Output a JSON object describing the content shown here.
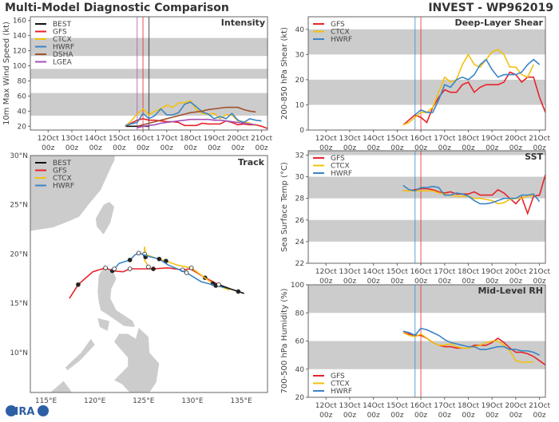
{
  "header": {
    "left_title": "Multi-Model Diagnostic Comparison",
    "right_title": "INVEST - WP962019"
  },
  "logo": {
    "text": "CIRA"
  },
  "colors": {
    "BEST": "#111111",
    "GFS": "#e8222a",
    "CTCX": "#f2c010",
    "HWRF": "#3a85c6",
    "DSHA": "#a0522d",
    "LGEA": "#a64fb5",
    "band": "#cccccc",
    "land": "#cccccc"
  },
  "time_axis": {
    "xlim": [
      "2019-10-11T06Z",
      "2019-10-21T06Z"
    ],
    "ticks": [
      "2019-10-12T00Z",
      "2019-10-13T00Z",
      "2019-10-14T00Z",
      "2019-10-15T00Z",
      "2019-10-16T00Z",
      "2019-10-17T00Z",
      "2019-10-18T00Z",
      "2019-10-19T00Z",
      "2019-10-20T00Z",
      "2019-10-21T00Z"
    ],
    "tick_labels": [
      "12Oct",
      "13Oct",
      "14Oct",
      "15Oct",
      "16Oct",
      "17Oct",
      "18Oct",
      "19Oct",
      "20Oct",
      "21Oct"
    ],
    "tick_sub": "00z"
  },
  "chart_data": [
    {
      "id": "intensity",
      "type": "line",
      "title": "Intensity",
      "ylabel": "10m Max Wind Speed (kt)",
      "ylim": [
        15,
        165
      ],
      "yticks": [
        20,
        40,
        60,
        80,
        100,
        120,
        140,
        160
      ],
      "bands": [
        [
          34,
          64
        ],
        [
          83,
          96
        ],
        [
          113,
          137
        ]
      ],
      "vlines": [
        {
          "model": "LGEA",
          "time": "2019-10-15T18Z"
        },
        {
          "model": "GFS",
          "time": "2019-10-16T00Z"
        },
        {
          "model": "BEST",
          "time": "2019-10-16T06Z"
        }
      ],
      "legend": [
        "BEST",
        "GFS",
        "CTCX",
        "HWRF",
        "DSHA",
        "LGEA"
      ],
      "legend_placement": "top-left",
      "step_hours": 6,
      "series": [
        {
          "name": "BEST",
          "start": "2019-10-15T06Z",
          "values": [
            20,
            20,
            20,
            20,
            20
          ]
        },
        {
          "name": "GFS",
          "start": "2019-10-15T06Z",
          "values": [
            20,
            24,
            28,
            30,
            28,
            28,
            27,
            26,
            26,
            25,
            21,
            21,
            21,
            24,
            23,
            23,
            23,
            27,
            25,
            22,
            23,
            22,
            22,
            20,
            17
          ]
        },
        {
          "name": "CTCX",
          "start": "2019-10-15T06Z",
          "values": [
            20,
            27,
            36,
            43,
            35,
            40,
            43,
            48,
            45,
            51,
            51,
            54,
            42,
            37,
            36,
            37,
            30,
            35,
            35,
            27,
            26,
            24,
            21
          ]
        },
        {
          "name": "HWRF",
          "start": "2019-10-15T06Z",
          "values": [
            21,
            23,
            25,
            37,
            30,
            34,
            43,
            35,
            35,
            38,
            49,
            52,
            46,
            39,
            36,
            30,
            33,
            30,
            37,
            28,
            25,
            30,
            28,
            27
          ]
        },
        {
          "name": "DSHA",
          "start": "2019-10-15T18Z",
          "values": [
            20,
            22,
            24,
            26,
            28,
            30,
            32,
            34,
            36,
            38,
            39,
            40,
            42,
            43,
            44,
            45,
            45,
            45,
            42,
            40,
            39
          ]
        },
        {
          "name": "LGEA",
          "start": "2019-10-15T18Z",
          "values": [
            18,
            20,
            21,
            22,
            24,
            25,
            26,
            27,
            28,
            29,
            29,
            29,
            29,
            28,
            28,
            27,
            26,
            25,
            24,
            23,
            22
          ]
        }
      ]
    },
    {
      "id": "shear",
      "type": "line",
      "title": "Deep-Layer Shear",
      "ylabel": "200-850 hPa Shear (kt)",
      "ylim": [
        0,
        45
      ],
      "yticks": [
        0,
        10,
        20,
        30,
        40
      ],
      "bands": [
        [
          10,
          20
        ],
        [
          30,
          40
        ]
      ],
      "vlines": [
        {
          "model": "HWRF",
          "time": "2019-10-15T18Z"
        },
        {
          "model": "GFS",
          "time": "2019-10-16T00Z"
        }
      ],
      "legend": [
        "GFS",
        "CTCX",
        "HWRF"
      ],
      "legend_placement": "top-left",
      "step_hours": 6,
      "series": [
        {
          "name": "GFS",
          "start": "2019-10-15T06Z",
          "values": [
            2,
            4,
            6,
            5,
            3,
            9,
            13,
            16,
            15,
            15,
            18,
            19,
            15,
            17,
            18,
            18,
            18,
            19,
            23,
            22,
            19,
            21,
            21,
            13,
            7
          ]
        },
        {
          "name": "CTCX",
          "start": "2019-10-15T06Z",
          "values": [
            2,
            3,
            5,
            7,
            7,
            9,
            15,
            21,
            19,
            20,
            26,
            30,
            26,
            25,
            28,
            31,
            32,
            30,
            25,
            25,
            22,
            21,
            26
          ]
        },
        {
          "name": "HWRF",
          "start": "2019-10-15T18Z",
          "values": [
            6,
            8,
            7,
            7,
            12,
            18,
            17,
            20,
            21,
            20,
            22,
            26,
            28,
            24,
            21,
            22,
            22,
            22,
            23,
            26,
            28,
            26
          ]
        }
      ]
    },
    {
      "id": "sst",
      "type": "line",
      "title": "SST",
      "ylabel": "Sea Surface Temp (°C)",
      "ylim": [
        22,
        32.4
      ],
      "yticks": [
        22,
        24,
        26,
        28,
        30,
        32
      ],
      "bands": [
        [
          24,
          26
        ],
        [
          28,
          30
        ],
        [
          32,
          34
        ]
      ],
      "vlines": [
        {
          "model": "HWRF",
          "time": "2019-10-15T18Z"
        },
        {
          "model": "GFS",
          "time": "2019-10-16T00Z"
        }
      ],
      "legend": [
        "GFS",
        "CTCX",
        "HWRF"
      ],
      "legend_placement": "top-left",
      "step_hours": 6,
      "series": [
        {
          "name": "GFS",
          "start": "2019-10-15T06Z",
          "values": [
            28.7,
            28.7,
            28.8,
            28.9,
            28.9,
            28.8,
            28.6,
            28.5,
            28.6,
            28.4,
            28.4,
            28.4,
            28.6,
            28.3,
            28.3,
            28.3,
            28.8,
            28.5,
            28.0,
            27.5,
            28.1,
            26.6,
            28.2,
            28.3,
            30.2
          ]
        },
        {
          "name": "CTCX",
          "start": "2019-10-15T06Z",
          "values": [
            28.7,
            28.7,
            28.7,
            28.7,
            28.7,
            28.7,
            28.5,
            28.4,
            28.3,
            28.2,
            28.2,
            28.2,
            28.0,
            28.0,
            27.9,
            27.8,
            27.5,
            27.6,
            27.9,
            28.0,
            28.0,
            28.2,
            28.3
          ]
        },
        {
          "name": "HWRF",
          "start": "2019-10-15T06Z",
          "values": [
            29.2,
            28.8,
            28.7,
            29.0,
            29.0,
            29.1,
            29.0,
            28.3,
            28.3,
            28.5,
            28.4,
            28.2,
            27.8,
            27.5,
            27.5,
            27.6,
            27.8,
            28.0,
            28.0,
            28.0,
            28.3,
            28.3,
            28.4,
            27.7
          ]
        }
      ]
    },
    {
      "id": "rh",
      "type": "line",
      "title": "Mid-Level RH",
      "ylabel": "700-500 hPa Humidity (%)",
      "ylim": [
        20,
        100
      ],
      "yticks": [
        20,
        40,
        60,
        80,
        100
      ],
      "bands": [
        [
          40,
          60
        ],
        [
          80,
          100
        ]
      ],
      "vlines": [
        {
          "model": "HWRF",
          "time": "2019-10-15T18Z"
        },
        {
          "model": "GFS",
          "time": "2019-10-16T00Z"
        }
      ],
      "legend": [
        "GFS",
        "CTCX",
        "HWRF"
      ],
      "legend_placement": "bottom-left",
      "step_hours": 6,
      "series": [
        {
          "name": "GFS",
          "start": "2019-10-15T06Z",
          "values": [
            66,
            65,
            64,
            64,
            62,
            59,
            57,
            56,
            56,
            55,
            55,
            55,
            57,
            57,
            57,
            59,
            62,
            59,
            55,
            52,
            52,
            51,
            49,
            46,
            43
          ]
        },
        {
          "name": "CTCX",
          "start": "2019-10-15T06Z",
          "values": [
            66,
            64,
            63,
            65,
            62,
            59,
            57,
            57,
            58,
            56,
            55,
            55,
            56,
            57,
            59,
            60,
            60,
            57,
            53,
            46,
            45,
            45,
            45
          ]
        },
        {
          "name": "HWRF",
          "start": "2019-10-15T06Z",
          "values": [
            67,
            66,
            64,
            69,
            68,
            66,
            64,
            61,
            59,
            58,
            57,
            56,
            56,
            54,
            54,
            55,
            56,
            56,
            54,
            54,
            53,
            53,
            52,
            50
          ]
        }
      ]
    },
    {
      "id": "track",
      "type": "line",
      "title": "Track",
      "xlim": [
        113.4,
        137.7
      ],
      "ylim": [
        5.95,
        30
      ],
      "xticks": [
        115,
        120,
        125,
        130,
        135
      ],
      "xtick_labels": [
        "115°E",
        "120°E",
        "125°E",
        "130°E",
        "135°E"
      ],
      "yticks": [
        10,
        15,
        20,
        25,
        30
      ],
      "ytick_labels": [
        "10°N",
        "15°N",
        "20°N",
        "25°N",
        "30°N"
      ],
      "legend": [
        "BEST",
        "GFS",
        "CTCX",
        "HWRF"
      ],
      "legend_placement": "top-left",
      "series": [
        {
          "name": "GFS",
          "points": [
            [
              132.7,
              16.9
            ],
            [
              131.3,
              17.6
            ],
            [
              129.8,
              18.5
            ],
            [
              129.0,
              18.4
            ],
            [
              127.5,
              18.6
            ],
            [
              126.0,
              18.5
            ],
            [
              124.8,
              18.5
            ],
            [
              123.6,
              18.5
            ],
            [
              122.9,
              18.2
            ],
            [
              121.8,
              18.3
            ],
            [
              121.6,
              18.4
            ],
            [
              121.1,
              18.6
            ],
            [
              119.8,
              18.2
            ],
            [
              118.3,
              16.9
            ],
            [
              117.4,
              15.5
            ]
          ]
        },
        {
          "name": "CTCX",
          "points": [
            [
              133.8,
              16.35
            ],
            [
              132.1,
              17.0
            ],
            [
              131.0,
              17.8
            ],
            [
              129.9,
              18.6
            ],
            [
              128.4,
              18.9
            ],
            [
              127.3,
              19.3
            ],
            [
              126.2,
              19.6
            ],
            [
              125.1,
              20.0
            ],
            [
              125.1,
              20.75
            ],
            [
              125.2,
              19.7
            ],
            [
              125.1,
              19.4
            ],
            [
              125.5,
              18.7
            ]
          ]
        },
        {
          "name": "HWRF",
          "points": [
            [
              133.8,
              16.5
            ],
            [
              132.4,
              16.8
            ],
            [
              130.9,
              17.2
            ],
            [
              129.4,
              18.1
            ],
            [
              127.5,
              18.9
            ],
            [
              126.6,
              19.5
            ],
            [
              125.4,
              19.8
            ],
            [
              124.5,
              20.1
            ],
            [
              124.1,
              19.9
            ],
            [
              123.6,
              19.4
            ],
            [
              122.5,
              19.05
            ],
            [
              122.0,
              18.5
            ],
            [
              121.7,
              18.4
            ]
          ]
        },
        {
          "name": "BEST",
          "points": [
            [
              135.3,
              16.0
            ],
            [
              134.7,
              16.2
            ],
            [
              133.8,
              16.5
            ],
            [
              132.7,
              16.9
            ]
          ]
        }
      ]
    }
  ]
}
